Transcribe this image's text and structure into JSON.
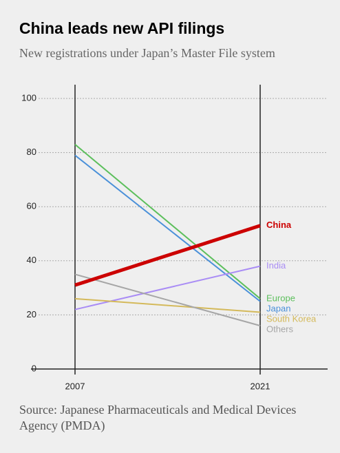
{
  "chart_data": {
    "type": "slope",
    "title": "China leads new API filings",
    "subtitle": "New registrations under Japan’s Master File system",
    "source": "Source: Japanese Pharmaceuticals and Medical Devices Agency (PMDA)",
    "categories": [
      "2007",
      "2021"
    ],
    "ylim": [
      0,
      100
    ],
    "yticks": [
      0,
      20,
      40,
      60,
      80,
      100
    ],
    "grid": true,
    "series": [
      {
        "name": "Europe",
        "color": "#5cbf5c",
        "values": [
          83,
          26
        ]
      },
      {
        "name": "Japan",
        "color": "#4a90d9",
        "values": [
          79,
          25
        ]
      },
      {
        "name": "India",
        "color": "#a98cf5",
        "values": [
          22,
          38
        ]
      },
      {
        "name": "South Korea",
        "color": "#d4b95a",
        "values": [
          26,
          21
        ]
      },
      {
        "name": "Others",
        "color": "#a6a6a6",
        "values": [
          35,
          16
        ]
      },
      {
        "name": "China",
        "color": "#cc0000",
        "values": [
          31,
          53
        ]
      }
    ]
  }
}
